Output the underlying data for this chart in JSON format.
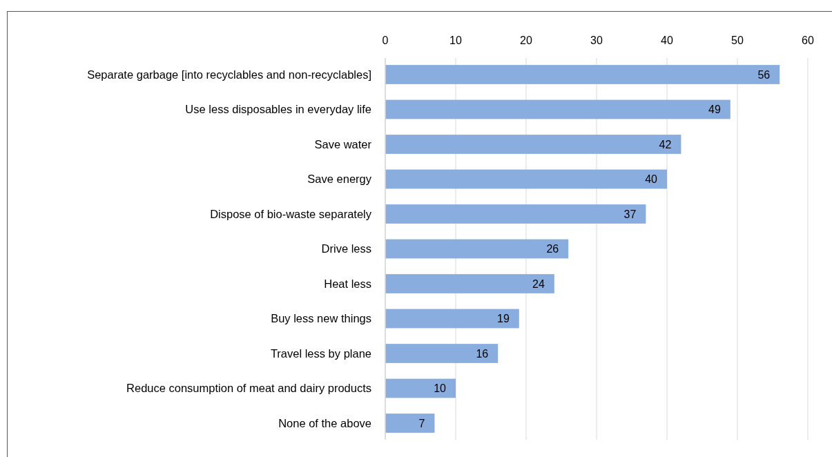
{
  "chart_data": {
    "type": "bar",
    "orientation": "horizontal",
    "categories": [
      "Separate garbage [into recyclables and non-recyclables]",
      "Use less disposables in everyday life",
      "Save water",
      "Save energy",
      "Dispose of bio-waste separately",
      "Drive less",
      "Heat less",
      "Buy less new things",
      "Travel less by plane",
      "Reduce consumption of meat and dairy products",
      "None of the above"
    ],
    "values": [
      56,
      49,
      42,
      40,
      37,
      26,
      24,
      19,
      16,
      10,
      7
    ],
    "color": "#8aade0",
    "xlim": [
      0,
      60
    ],
    "xticks": [
      0,
      10,
      20,
      30,
      40,
      50,
      60
    ],
    "grid": "x",
    "data_labels": true
  }
}
